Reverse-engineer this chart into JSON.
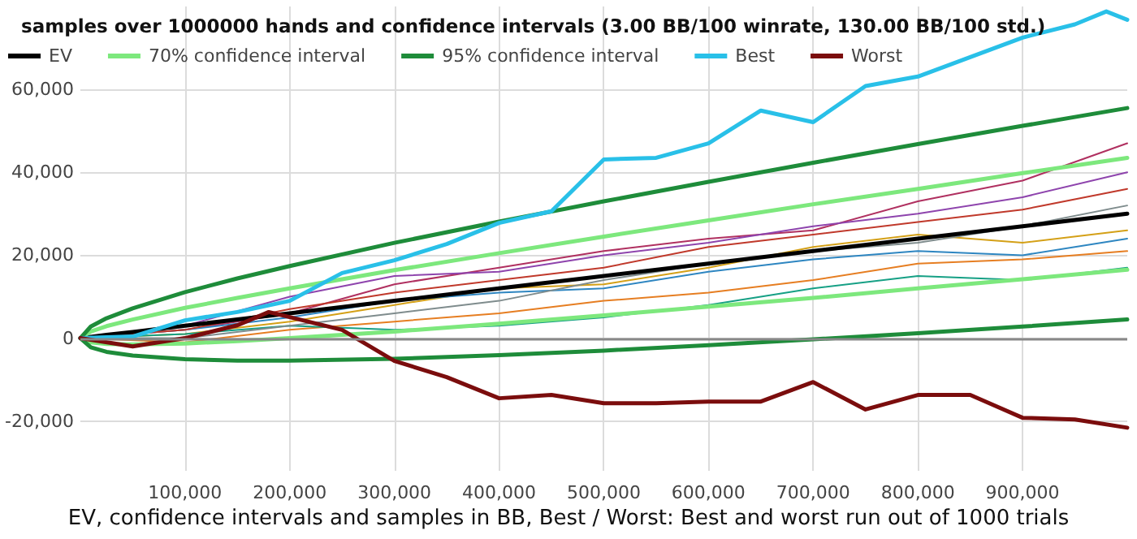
{
  "chart_data": {
    "type": "line",
    "title": "samples over 1000000 hands and confidence intervals (3.00 BB/100 winrate, 130.00 BB/100 std.)",
    "annotations": [
      "EV, confidence intervals and samples in BB, Best / Worst: Best and worst run out of 1000 trials"
    ],
    "xlim": [
      0,
      1000000
    ],
    "xticks": [
      {
        "value": 100000,
        "label": "100,000"
      },
      {
        "value": 200000,
        "label": "200,000"
      },
      {
        "value": 300000,
        "label": "300,000"
      },
      {
        "value": 400000,
        "label": "400,000"
      },
      {
        "value": 500000,
        "label": "500,000"
      },
      {
        "value": 600000,
        "label": "600,000"
      },
      {
        "value": 700000,
        "label": "700,000"
      },
      {
        "value": 800000,
        "label": "800,000"
      },
      {
        "value": 900000,
        "label": "900,000"
      }
    ],
    "ylim": [
      -32000,
      80000
    ],
    "yticks": [
      {
        "value": -20000,
        "label": "-20,000"
      },
      {
        "value": 0,
        "label": "0"
      },
      {
        "value": 20000,
        "label": "20,000"
      },
      {
        "value": 40000,
        "label": "40,000"
      },
      {
        "value": 60000,
        "label": "60,000"
      }
    ],
    "grid": true,
    "legend": "top left",
    "marker": "none",
    "line_style": "solid",
    "ref_lines": [
      {
        "axis": "y",
        "value": 0,
        "color": "#888888"
      }
    ],
    "series": [
      {
        "color": "#b03060",
        "x": [
          0,
          100000,
          200000,
          300000,
          400000,
          500000,
          600000,
          700000,
          800000,
          900000,
          1000000
        ],
        "values": [
          0,
          2000,
          6000,
          13000,
          17000,
          21000,
          24000,
          26000,
          33000,
          38000,
          47000
        ]
      },
      {
        "color": "#8e44ad",
        "x": [
          0,
          100000,
          200000,
          300000,
          400000,
          500000,
          600000,
          700000,
          800000,
          900000,
          1000000
        ],
        "values": [
          0,
          3000,
          10000,
          15000,
          16000,
          20000,
          23000,
          27000,
          30000,
          34000,
          40000
        ]
      },
      {
        "color": "#d4a017",
        "x": [
          0,
          100000,
          200000,
          300000,
          400000,
          500000,
          600000,
          700000,
          800000,
          900000,
          1000000
        ],
        "values": [
          0,
          1000,
          4000,
          8000,
          12000,
          13000,
          17000,
          22000,
          25000,
          23000,
          26000
        ]
      },
      {
        "color": "#2e86c1",
        "x": [
          0,
          100000,
          200000,
          300000,
          400000,
          500000,
          600000,
          700000,
          800000,
          900000,
          1000000
        ],
        "values": [
          0,
          2000,
          5000,
          9000,
          11000,
          12000,
          16000,
          19000,
          21000,
          20000,
          24000
        ]
      },
      {
        "color": "#e67e22",
        "x": [
          0,
          100000,
          200000,
          300000,
          400000,
          500000,
          600000,
          700000,
          800000,
          900000,
          1000000
        ],
        "values": [
          0,
          -1000,
          2000,
          4000,
          6000,
          9000,
          11000,
          14000,
          18000,
          19000,
          21000
        ]
      },
      {
        "color": "#16a085",
        "x": [
          0,
          100000,
          200000,
          300000,
          400000,
          500000,
          600000,
          700000,
          800000,
          900000,
          1000000
        ],
        "values": [
          0,
          1000,
          3000,
          2000,
          3000,
          5000,
          8000,
          12000,
          15000,
          14000,
          17000
        ]
      },
      {
        "color": "#7f8c8d",
        "x": [
          0,
          100000,
          200000,
          300000,
          400000,
          500000,
          600000,
          700000,
          800000,
          900000,
          1000000
        ],
        "values": [
          0,
          0,
          3000,
          6000,
          9000,
          14000,
          18000,
          21000,
          23000,
          27000,
          32000
        ]
      },
      {
        "color": "#c0392b",
        "x": [
          0,
          100000,
          200000,
          300000,
          400000,
          500000,
          600000,
          700000,
          800000,
          900000,
          1000000
        ],
        "values": [
          0,
          2000,
          7000,
          11000,
          14000,
          17000,
          22000,
          25000,
          28000,
          31000,
          36000
        ]
      },
      {
        "name": "EV",
        "color": "#000000",
        "x": [
          0,
          10000,
          25000,
          50000,
          100000,
          150000,
          200000,
          300000,
          400000,
          500000,
          600000,
          700000,
          800000,
          900000,
          1000000
        ],
        "values": [
          0,
          300,
          800,
          1500,
          3000,
          4500,
          6000,
          9000,
          12000,
          15000,
          18000,
          21000,
          24000,
          27000,
          30000
        ]
      },
      {
        "name": "70% confidence interval",
        "color": "#7de87d",
        "x": [
          0,
          10000,
          25000,
          50000,
          100000,
          150000,
          200000,
          300000,
          400000,
          500000,
          600000,
          700000,
          800000,
          900000,
          1000000,
          null,
          0,
          10000,
          25000,
          50000,
          100000,
          150000,
          200000,
          300000,
          400000,
          500000,
          600000,
          700000,
          800000,
          900000,
          1000000
        ],
        "values": [
          0,
          1600,
          2900,
          4500,
          7300,
          9700,
          12000,
          16400,
          20500,
          24500,
          28400,
          32300,
          36000,
          39800,
          43500,
          null,
          0,
          -1000,
          -1400,
          -1500,
          -1300,
          -700,
          0,
          1600,
          3500,
          5500,
          7600,
          9700,
          12000,
          14200,
          16500
        ]
      },
      {
        "name": "95% confidence interval",
        "color": "#1e8c3a",
        "x": [
          0,
          10000,
          25000,
          50000,
          100000,
          150000,
          200000,
          300000,
          400000,
          500000,
          600000,
          700000,
          800000,
          900000,
          1000000,
          null,
          0,
          10000,
          25000,
          50000,
          100000,
          150000,
          200000,
          300000,
          400000,
          500000,
          600000,
          700000,
          800000,
          900000,
          1000000
        ],
        "values": [
          0,
          2800,
          4800,
          7200,
          11100,
          14400,
          17400,
          23000,
          28100,
          33000,
          37700,
          42300,
          46800,
          51200,
          55500,
          null,
          0,
          -2200,
          -3300,
          -4200,
          -5100,
          -5400,
          -5400,
          -5000,
          -4100,
          -3000,
          -1700,
          -300,
          1200,
          2800,
          4500
        ]
      },
      {
        "name": "Best",
        "color": "#29c0e8",
        "x": [
          0,
          50000,
          100000,
          150000,
          200000,
          250000,
          300000,
          350000,
          400000,
          450000,
          500000,
          550000,
          600000,
          650000,
          700000,
          750000,
          800000,
          850000,
          900000,
          950000,
          980000,
          1000000
        ],
        "values": [
          0,
          400,
          4300,
          6300,
          9000,
          15700,
          18800,
          22700,
          27800,
          30600,
          43100,
          43500,
          47000,
          54900,
          52100,
          60800,
          63100,
          67800,
          72500,
          75700,
          78800,
          76800
        ]
      },
      {
        "name": "Worst",
        "color": "#7b0d0d",
        "x": [
          0,
          50000,
          100000,
          150000,
          180000,
          250000,
          300000,
          350000,
          400000,
          450000,
          500000,
          550000,
          600000,
          650000,
          700000,
          750000,
          800000,
          850000,
          900000,
          950000,
          1000000
        ],
        "values": [
          0,
          -2000,
          0,
          3100,
          6300,
          2000,
          -5500,
          -9400,
          -14500,
          -13700,
          -15700,
          -15700,
          -15300,
          -15300,
          -10600,
          -17200,
          -13700,
          -13700,
          -19200,
          -19600,
          -21600
        ]
      }
    ]
  }
}
